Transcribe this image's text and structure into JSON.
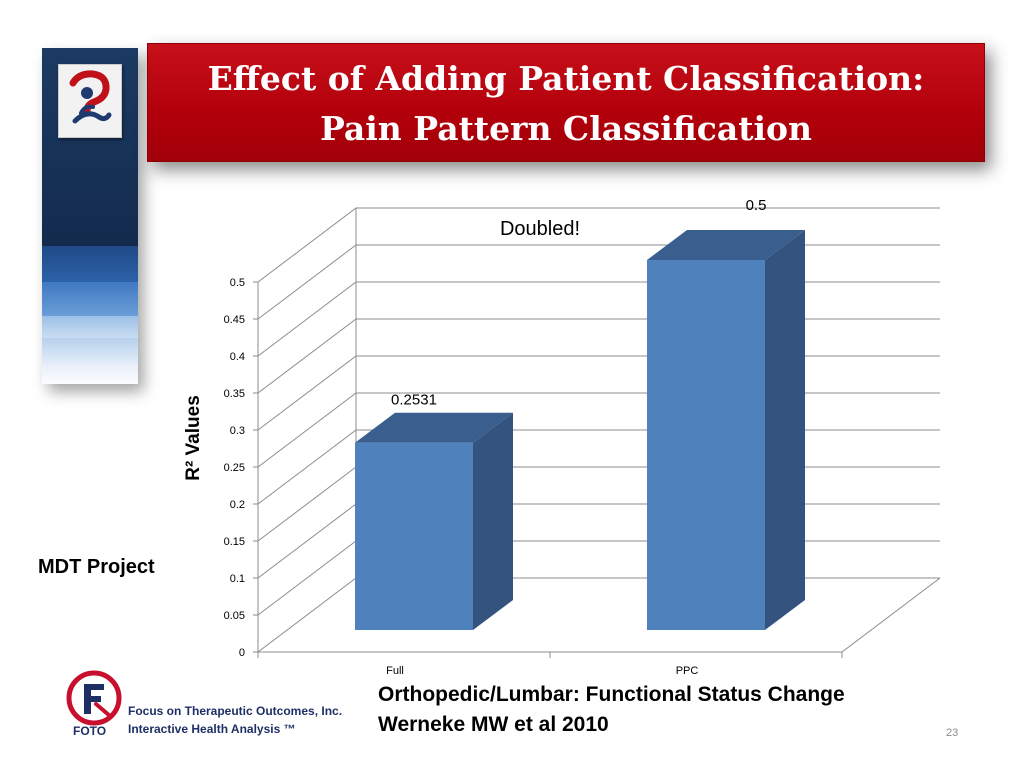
{
  "title": {
    "line1": "Effect of Adding Patient Classification:",
    "line2": "Pain Pattern Classification"
  },
  "side_label": "MDT Project",
  "footer": {
    "line1": "Orthopedic/Lumbar: Functional Status Change",
    "line2": "Werneke MW et al 2010",
    "slide_number": "23"
  },
  "logo": {
    "word": "FOTO",
    "company": "Focus on Therapeutic Outcomes, Inc.",
    "tagline": "Interactive Health Analysis ™"
  },
  "colors": {
    "banner": "#b80010",
    "bar_front": "#4f81bd",
    "bar_side": "#34547f",
    "bar_top": "#3a5f8f"
  },
  "chart_data": {
    "type": "bar",
    "categories": [
      "Full",
      "PPC"
    ],
    "values": [
      0.2531,
      0.5
    ],
    "data_labels": [
      "0.2531",
      "0.5"
    ],
    "ylabel": "R² Values",
    "ylim": [
      0,
      0.5
    ],
    "yticks": [
      "0",
      "0.05",
      "0.1",
      "0.15",
      "0.2",
      "0.25",
      "0.3",
      "0.35",
      "0.4",
      "0.45",
      "0.5"
    ],
    "annotation": "Doubled!",
    "grid": true,
    "three_d": true
  }
}
